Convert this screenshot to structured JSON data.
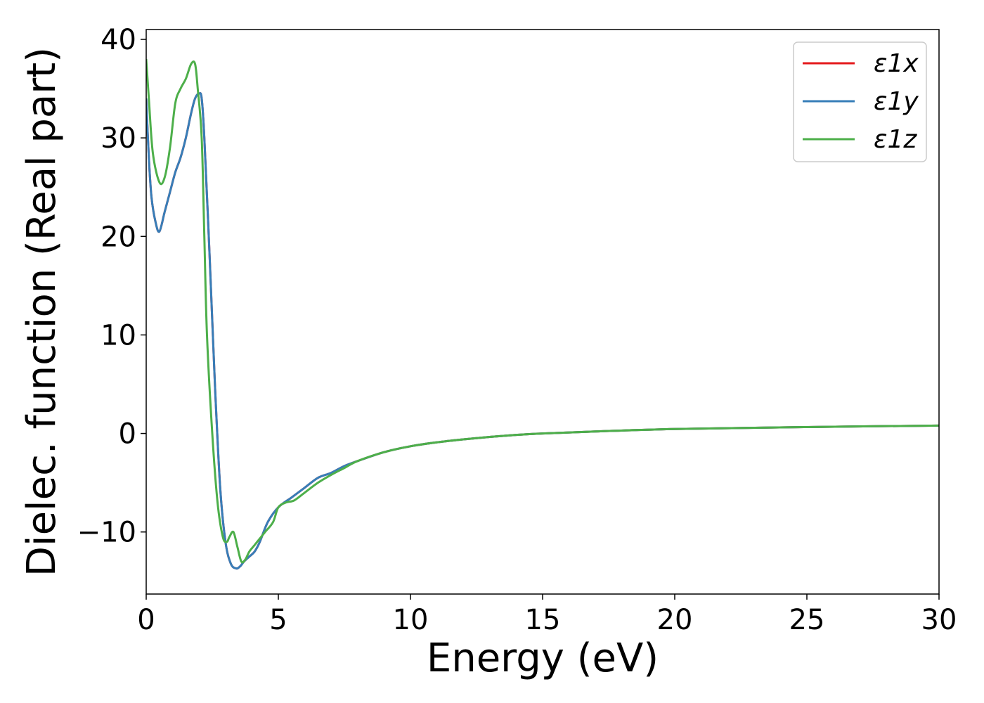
{
  "chart_data": {
    "type": "line",
    "title": "",
    "xlabel": "Energy (eV)",
    "ylabel": "Dielec. function (Real part)",
    "xlim": [
      0,
      30
    ],
    "ylim": [
      -16.3,
      41
    ],
    "xticks": [
      0,
      5,
      10,
      15,
      20,
      25,
      30
    ],
    "xtick_labels": [
      "0",
      "5",
      "10",
      "15",
      "20",
      "25",
      "30"
    ],
    "yticks": [
      -10,
      0,
      10,
      20,
      30,
      40
    ],
    "ytick_labels": [
      "−10",
      "0",
      "10",
      "20",
      "30",
      "40"
    ],
    "grid": false,
    "legend_position": "top-right",
    "series": [
      {
        "name": "ε1x",
        "color": "#e41a1c",
        "x": [
          0,
          0.1,
          0.2,
          0.35,
          0.5,
          0.7,
          0.9,
          1.1,
          1.3,
          1.5,
          1.7,
          1.85,
          2.0,
          2.1,
          2.2,
          2.4,
          2.6,
          2.8,
          3.0,
          3.2,
          3.4,
          3.55,
          3.7,
          3.9,
          4.1,
          4.3,
          4.6,
          5.0,
          5.5,
          6.0,
          6.5,
          7.0,
          7.5,
          8.0,
          9.0,
          10.0,
          11.0,
          12.0,
          13.0,
          14.0,
          15.0,
          17.0,
          20.0,
          25.0,
          30.0
        ],
        "y": [
          34.0,
          28.0,
          24.0,
          21.5,
          20.5,
          22.5,
          24.5,
          26.5,
          28.0,
          30.0,
          32.5,
          34.0,
          34.5,
          34.0,
          30.0,
          18.0,
          5.0,
          -5.5,
          -11.0,
          -13.2,
          -13.7,
          -13.5,
          -13.0,
          -12.5,
          -12.0,
          -11.0,
          -9.0,
          -7.5,
          -6.5,
          -5.5,
          -4.5,
          -4.0,
          -3.3,
          -2.8,
          -1.9,
          -1.3,
          -0.9,
          -0.6,
          -0.35,
          -0.15,
          0.0,
          0.2,
          0.45,
          0.65,
          0.8
        ]
      },
      {
        "name": "ε1y",
        "color": "#377eb8",
        "x": [
          0,
          0.1,
          0.2,
          0.35,
          0.5,
          0.7,
          0.9,
          1.1,
          1.3,
          1.5,
          1.7,
          1.85,
          2.0,
          2.1,
          2.2,
          2.4,
          2.6,
          2.8,
          3.0,
          3.2,
          3.4,
          3.55,
          3.7,
          3.9,
          4.1,
          4.3,
          4.6,
          5.0,
          5.5,
          6.0,
          6.5,
          7.0,
          7.5,
          8.0,
          9.0,
          10.0,
          11.0,
          12.0,
          13.0,
          14.0,
          15.0,
          17.0,
          20.0,
          25.0,
          30.0
        ],
        "y": [
          34.0,
          28.0,
          24.0,
          21.5,
          20.5,
          22.5,
          24.5,
          26.5,
          28.0,
          30.0,
          32.5,
          34.0,
          34.5,
          34.0,
          30.0,
          18.0,
          5.0,
          -5.5,
          -11.0,
          -13.2,
          -13.7,
          -13.5,
          -13.0,
          -12.5,
          -12.0,
          -11.0,
          -9.0,
          -7.5,
          -6.5,
          -5.5,
          -4.5,
          -4.0,
          -3.3,
          -2.8,
          -1.9,
          -1.3,
          -0.9,
          -0.6,
          -0.35,
          -0.15,
          0.0,
          0.2,
          0.45,
          0.65,
          0.8
        ]
      },
      {
        "name": "ε1z",
        "color": "#4daf4a",
        "x": [
          0,
          0.1,
          0.25,
          0.5,
          0.7,
          0.9,
          1.1,
          1.3,
          1.5,
          1.7,
          1.85,
          1.95,
          2.1,
          2.2,
          2.3,
          2.5,
          2.7,
          2.9,
          3.05,
          3.15,
          3.3,
          3.45,
          3.6,
          3.75,
          3.9,
          4.05,
          4.2,
          4.5,
          4.8,
          5.0,
          5.3,
          5.6,
          6.0,
          6.5,
          7.0,
          7.5,
          8.0,
          9.0,
          10.0,
          11.0,
          12.0,
          13.0,
          14.0,
          15.0,
          17.0,
          20.0,
          25.0,
          30.0
        ],
        "y": [
          38.0,
          34.0,
          28.5,
          25.5,
          26.0,
          29.0,
          33.5,
          35.0,
          36.0,
          37.5,
          37.5,
          35.0,
          30.0,
          20.0,
          10.0,
          0.0,
          -7.0,
          -10.5,
          -11.0,
          -10.5,
          -10.0,
          -11.5,
          -13.0,
          -12.8,
          -12.0,
          -11.5,
          -11.0,
          -10.0,
          -9.0,
          -7.5,
          -7.0,
          -6.8,
          -6.0,
          -5.0,
          -4.2,
          -3.5,
          -2.8,
          -1.9,
          -1.3,
          -0.9,
          -0.6,
          -0.35,
          -0.15,
          0.0,
          0.2,
          0.45,
          0.65,
          0.8
        ]
      }
    ]
  }
}
